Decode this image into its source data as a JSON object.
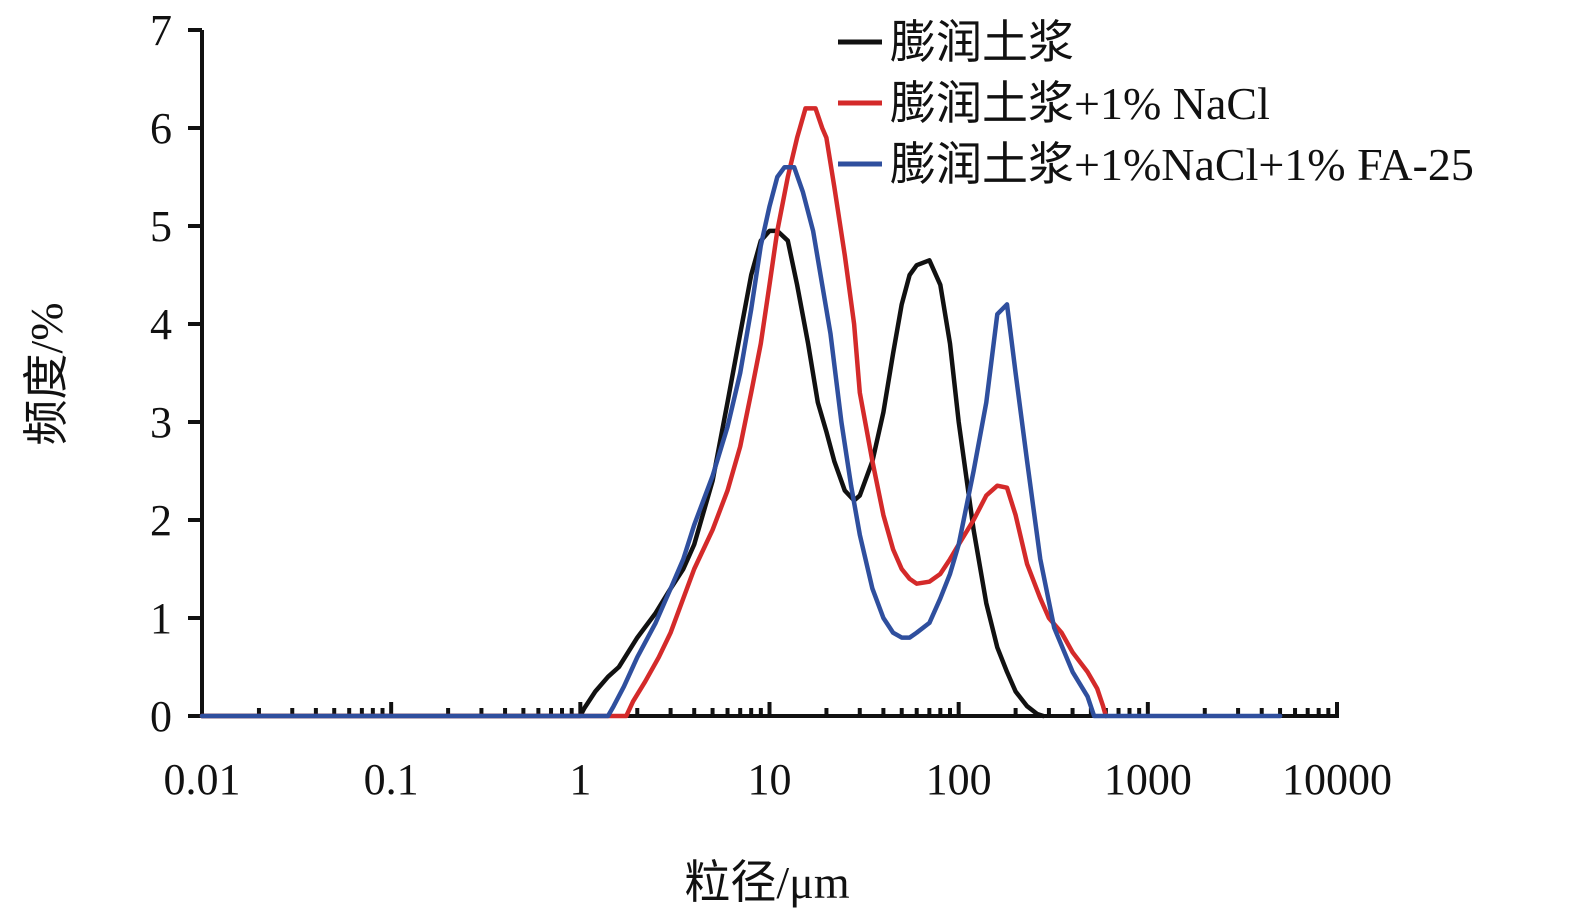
{
  "chart_data": {
    "type": "line",
    "xlabel": "粒径/μm",
    "ylabel": "频度/%",
    "xscale": "log",
    "xlim": [
      0.01,
      10000
    ],
    "ylim": [
      0,
      7
    ],
    "xticks": [
      0.01,
      0.1,
      1,
      10,
      100,
      1000,
      10000
    ],
    "xtick_labels": [
      "0.01",
      "0.1",
      "1",
      "10",
      "100",
      "1000",
      "10000"
    ],
    "yticks": [
      0,
      1,
      2,
      3,
      4,
      5,
      6,
      7
    ],
    "ytick_labels": [
      "0",
      "1",
      "2",
      "3",
      "4",
      "5",
      "6",
      "7"
    ],
    "grid": false,
    "legend_position": "top-right",
    "series": [
      {
        "name": "膨润土浆",
        "color": "#111111",
        "x": [
          0.01,
          1.0,
          1.05,
          1.2,
          1.4,
          1.6,
          2.0,
          2.5,
          3.0,
          3.5,
          4.0,
          5.0,
          6.0,
          7.0,
          8.0,
          9.0,
          10.0,
          11.0,
          12.5,
          14.0,
          16.0,
          18.0,
          20.0,
          22.0,
          25.0,
          28.0,
          30.0,
          35.0,
          40.0,
          45.0,
          50.0,
          55.0,
          60.0,
          70.0,
          80.0,
          90.0,
          100.0,
          120.0,
          140.0,
          160.0,
          180.0,
          200.0,
          230.0,
          260.0,
          280.0
        ],
        "y": [
          0,
          0,
          0.08,
          0.25,
          0.4,
          0.5,
          0.8,
          1.05,
          1.3,
          1.5,
          1.75,
          2.4,
          3.2,
          3.9,
          4.5,
          4.85,
          4.95,
          4.95,
          4.85,
          4.4,
          3.8,
          3.2,
          2.9,
          2.6,
          2.3,
          2.2,
          2.25,
          2.6,
          3.1,
          3.7,
          4.2,
          4.5,
          4.6,
          4.65,
          4.4,
          3.8,
          3.0,
          1.9,
          1.15,
          0.7,
          0.45,
          0.25,
          0.1,
          0.02,
          0
        ]
      },
      {
        "name": "膨润土浆+1% NaCl",
        "color": "#d42a2a",
        "x": [
          0.01,
          1.75,
          1.9,
          2.2,
          2.6,
          3.0,
          3.5,
          4.0,
          5.0,
          6.0,
          7.0,
          8.0,
          9.0,
          10.0,
          11.0,
          12.5,
          14.0,
          15.5,
          17.5,
          19.0,
          20.0,
          22.0,
          25.0,
          28.0,
          30.0,
          35.0,
          40.0,
          45.0,
          50.0,
          55.0,
          60.0,
          70.0,
          80.0,
          90.0,
          100.0,
          120.0,
          140.0,
          160.0,
          180.0,
          200.0,
          230.0,
          270.0,
          300.0,
          350.0,
          400.0,
          480.0,
          540.0,
          580.0,
          600.0
        ],
        "y": [
          0,
          0,
          0.15,
          0.35,
          0.6,
          0.85,
          1.2,
          1.5,
          1.9,
          2.3,
          2.75,
          3.3,
          3.8,
          4.4,
          4.95,
          5.5,
          5.9,
          6.2,
          6.2,
          6.0,
          5.9,
          5.4,
          4.7,
          4.0,
          3.3,
          2.6,
          2.05,
          1.7,
          1.5,
          1.4,
          1.35,
          1.37,
          1.45,
          1.6,
          1.75,
          2.0,
          2.25,
          2.35,
          2.33,
          2.05,
          1.55,
          1.2,
          1.0,
          0.85,
          0.65,
          0.45,
          0.28,
          0.1,
          0
        ]
      },
      {
        "name": "膨润土浆+1%NaCl+1% FA-25",
        "color": "#2f4f9e",
        "x": [
          0.01,
          1.4,
          1.5,
          1.7,
          2.0,
          2.5,
          3.0,
          3.5,
          4.0,
          5.0,
          6.0,
          7.0,
          8.0,
          9.0,
          10.0,
          11.0,
          12.0,
          13.5,
          15.0,
          17.0,
          19.0,
          21.0,
          24.0,
          27.0,
          30.0,
          35.0,
          40.0,
          45.0,
          50.0,
          55.0,
          60.0,
          70.0,
          80.0,
          90.0,
          100.0,
          120.0,
          140.0,
          160.0,
          180.0,
          200.0,
          230.0,
          270.0,
          320.0,
          400.0,
          480.0,
          520.0,
          5000.0
        ],
        "y": [
          0,
          0,
          0.1,
          0.3,
          0.6,
          0.95,
          1.3,
          1.6,
          1.95,
          2.45,
          2.95,
          3.5,
          4.15,
          4.8,
          5.2,
          5.5,
          5.6,
          5.6,
          5.35,
          4.95,
          4.4,
          3.9,
          3.0,
          2.35,
          1.85,
          1.3,
          1.0,
          0.85,
          0.8,
          0.8,
          0.85,
          0.95,
          1.2,
          1.45,
          1.75,
          2.5,
          3.2,
          4.1,
          4.2,
          3.5,
          2.6,
          1.6,
          0.9,
          0.45,
          0.2,
          0,
          0
        ]
      }
    ]
  }
}
